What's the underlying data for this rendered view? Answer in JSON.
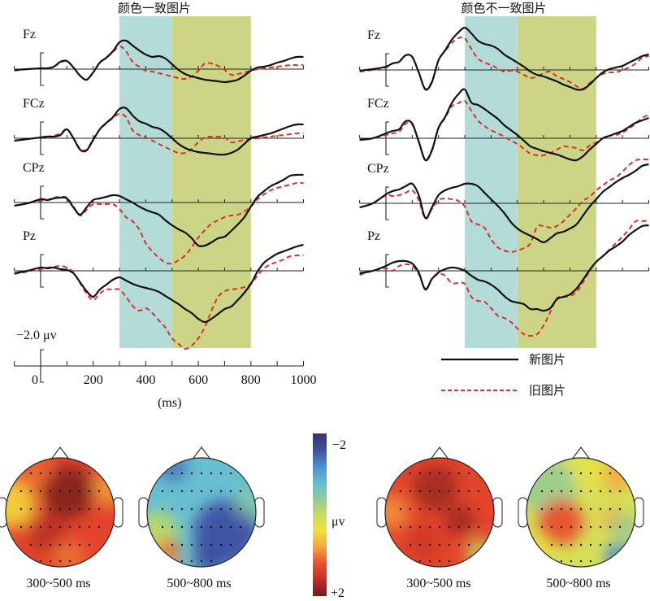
{
  "chart_data": {
    "type": "line",
    "description": "ERP waveforms (new vs old pictures) at four midline electrodes for color-consistent and color-inconsistent pictures, with scalp topographic maps",
    "x_unit_label": "(ms)",
    "x_ticks": [
      0,
      200,
      400,
      600,
      800,
      1000
    ],
    "x_range": [
      -100,
      1000
    ],
    "x_minor_step": 100,
    "amplitude_scale_label": "−2.0 μv",
    "amplitude_scale_value": -2.0,
    "polarity": "negative-up",
    "windows": [
      {
        "label": "300~500 ms",
        "start": 300,
        "end": 500,
        "color": "#b3dcd8"
      },
      {
        "label": "500~800 ms",
        "start": 500,
        "end": 800,
        "color": "#cbd585"
      }
    ],
    "legend": {
      "placement": "bottom-right",
      "items": [
        {
          "label": "新图片",
          "style": "solid",
          "color": "#111111"
        },
        {
          "label": "旧图片",
          "style": "dashed",
          "color": "#d8322b"
        }
      ]
    },
    "panels": [
      {
        "title": "颜色一致图片",
        "x": [
          -100,
          -50,
          0,
          25,
          50,
          75,
          100,
          125,
          150,
          175,
          200,
          225,
          250,
          275,
          300,
          325,
          350,
          375,
          400,
          425,
          450,
          475,
          500,
          525,
          550,
          575,
          600,
          625,
          650,
          675,
          700,
          725,
          750,
          775,
          800,
          825,
          850,
          875,
          900,
          925,
          950,
          975,
          1000
        ],
        "electrodes": [
          {
            "name": "Fz",
            "new": [
              0.1,
              0.0,
              -0.1,
              -0.1,
              -0.3,
              -0.9,
              -1.0,
              -0.2,
              0.8,
              1.3,
              0.4,
              -0.8,
              -1.4,
              -2.2,
              -3.3,
              -3.5,
              -2.9,
              -2.3,
              -1.8,
              -1.5,
              -1.6,
              -1.3,
              -0.6,
              0.1,
              0.6,
              0.9,
              1.1,
              1.3,
              1.4,
              1.5,
              1.6,
              1.5,
              1.3,
              0.8,
              0.2,
              -0.2,
              -0.3,
              -0.5,
              -0.8,
              -1.0,
              -1.3,
              -1.5,
              -1.5
            ],
            "old": [
              0.2,
              0.0,
              -0.1,
              -0.1,
              -0.3,
              -0.8,
              -1.0,
              -0.2,
              0.8,
              1.3,
              0.4,
              -0.8,
              -1.4,
              -2.1,
              -2.8,
              -2.2,
              -0.9,
              -0.3,
              0.2,
              0.3,
              0.5,
              0.7,
              0.9,
              1.1,
              1.2,
              0.9,
              0.2,
              -0.7,
              -0.7,
              -0.4,
              0.1,
              0.7,
              0.6,
              0.4,
              0.2,
              0.0,
              -0.1,
              -0.2,
              -0.3,
              -0.4,
              -0.5,
              -0.5,
              -0.5
            ]
          },
          {
            "name": "FCz",
            "new": [
              0.3,
              0.1,
              -0.1,
              -0.2,
              -0.2,
              -0.4,
              -1.1,
              0.0,
              1.4,
              1.5,
              0.2,
              -1.1,
              -1.9,
              -2.6,
              -3.6,
              -3.7,
              -2.8,
              -2.1,
              -1.8,
              -1.4,
              -1.2,
              -0.7,
              0.0,
              0.7,
              1.2,
              1.5,
              1.7,
              1.8,
              1.9,
              2.0,
              2.0,
              1.8,
              1.4,
              0.7,
              0.0,
              -0.2,
              -0.4,
              -0.6,
              -0.9,
              -1.2,
              -1.5,
              -1.7,
              -1.7
            ],
            "old": [
              0.3,
              0.1,
              -0.1,
              -0.2,
              -0.3,
              -0.6,
              -1.1,
              0.0,
              1.3,
              1.4,
              0.1,
              -1.1,
              -1.8,
              -2.5,
              -3.0,
              -2.6,
              -1.0,
              -0.4,
              -0.1,
              0.3,
              0.7,
              1.1,
              1.5,
              1.8,
              1.8,
              1.3,
              0.5,
              -0.1,
              -0.2,
              -0.2,
              -0.1,
              0.5,
              0.4,
              0.2,
              0.1,
              0.0,
              -0.1,
              -0.2,
              -0.3,
              -0.4,
              -0.5,
              -0.6,
              -0.6
            ]
          },
          {
            "name": "CPz",
            "new": [
              0.4,
              0.1,
              -0.4,
              -0.3,
              -0.5,
              -0.6,
              -0.5,
              0.6,
              1.5,
              0.6,
              -0.3,
              -0.5,
              -0.7,
              -0.9,
              -0.8,
              -0.4,
              0.0,
              0.5,
              0.9,
              1.2,
              1.5,
              2.2,
              2.8,
              3.3,
              3.7,
              4.4,
              5.3,
              5.3,
              4.9,
              4.4,
              4.2,
              3.5,
              2.7,
              1.8,
              0.5,
              -0.7,
              -1.4,
              -2.0,
              -2.4,
              -2.8,
              -3.3,
              -3.4,
              -3.4
            ],
            "old": [
              0.4,
              0.1,
              -0.2,
              -0.3,
              -0.6,
              -0.7,
              -0.6,
              0.5,
              1.6,
              0.9,
              0.2,
              0.2,
              0.2,
              0.2,
              0.8,
              1.8,
              2.3,
              3.3,
              5.0,
              6.0,
              6.8,
              7.4,
              7.5,
              7.1,
              6.5,
              5.5,
              4.3,
              3.4,
              2.6,
              2.2,
              1.8,
              1.6,
              1.5,
              1.1,
              0.5,
              -0.4,
              -1.0,
              -1.5,
              -1.8,
              -2.0,
              -2.2,
              -2.4,
              -2.4
            ]
          },
          {
            "name": "Pz",
            "new": [
              0.3,
              0.0,
              -0.4,
              -0.3,
              -0.4,
              -0.2,
              -0.1,
              0.3,
              1.4,
              2.5,
              3.2,
              2.3,
              1.7,
              1.1,
              0.8,
              1.2,
              1.6,
              1.9,
              2.1,
              2.3,
              2.6,
              3.1,
              3.6,
              4.1,
              4.7,
              5.2,
              5.9,
              6.3,
              5.9,
              5.3,
              4.7,
              4.4,
              3.6,
              2.7,
              1.6,
              0.1,
              -1.0,
              -1.6,
              -2.1,
              -2.4,
              -2.7,
              -3.0,
              -3.2
            ],
            "old": [
              0.4,
              0.1,
              -0.2,
              -0.4,
              -0.5,
              -0.6,
              -0.4,
              0.2,
              1.5,
              2.8,
              3.6,
              2.8,
              2.3,
              2.3,
              2.3,
              3.2,
              4.3,
              4.9,
              4.6,
              5.2,
              6.1,
              7.0,
              8.3,
              9.0,
              9.6,
              9.2,
              8.3,
              6.9,
              4.9,
              3.2,
              2.5,
              2.3,
              2.2,
              2.0,
              1.6,
              0.6,
              -0.3,
              -0.8,
              -1.1,
              -1.4,
              -1.8,
              -1.9,
              -1.9
            ]
          }
        ]
      },
      {
        "title": "颜色不一致图片",
        "x": [
          -100,
          -50,
          0,
          25,
          50,
          75,
          100,
          125,
          150,
          175,
          200,
          225,
          250,
          275,
          300,
          325,
          350,
          375,
          400,
          425,
          450,
          475,
          500,
          525,
          550,
          575,
          600,
          625,
          650,
          675,
          700,
          725,
          750,
          775,
          800,
          825,
          850,
          875,
          900,
          925,
          950,
          975,
          1000
        ],
        "electrodes": [
          {
            "name": "Fz",
            "new": [
              0.1,
              -0.1,
              -0.4,
              -0.8,
              -1.0,
              -1.8,
              -1.6,
              0.3,
              2.4,
              1.5,
              -1.2,
              -2.4,
              -3.7,
              -4.6,
              -5.2,
              -4.5,
              -3.6,
              -3.2,
              -3.0,
              -2.6,
              -1.9,
              -1.4,
              -0.9,
              -0.4,
              0.2,
              0.6,
              0.8,
              1.1,
              1.4,
              1.8,
              2.1,
              2.4,
              2.4,
              1.8,
              1.0,
              0.3,
              -0.1,
              -0.3,
              -0.5,
              -0.9,
              -1.3,
              -1.7,
              -1.9
            ],
            "old": [
              0.2,
              0.0,
              -0.3,
              -0.8,
              -1.0,
              -1.8,
              -1.6,
              0.3,
              2.3,
              1.4,
              -1.2,
              -2.3,
              -3.3,
              -3.9,
              -3.9,
              -2.6,
              -1.4,
              -0.9,
              -0.6,
              -0.2,
              0.2,
              0.1,
              0.2,
              0.6,
              1.0,
              0.8,
              0.4,
              0.2,
              0.8,
              1.1,
              1.5,
              2.0,
              2.3,
              1.6,
              1.0,
              0.5,
              0.3,
              0.3,
              0.0,
              -0.3,
              -0.8,
              -1.5,
              -1.7
            ]
          },
          {
            "name": "FCz",
            "new": [
              0.2,
              0.0,
              -0.6,
              -0.9,
              -1.1,
              -2.1,
              -1.8,
              0.4,
              2.7,
              1.5,
              -1.3,
              -2.6,
              -4.3,
              -5.4,
              -6.0,
              -4.4,
              -4.1,
              -3.6,
              -3.0,
              -2.4,
              -1.6,
              -1.0,
              -0.4,
              0.3,
              1.0,
              1.3,
              1.6,
              1.8,
              2.0,
              2.3,
              2.6,
              2.7,
              2.2,
              1.4,
              0.7,
              0.0,
              -0.3,
              -0.6,
              -0.9,
              -1.4,
              -1.9,
              -2.2,
              -2.5
            ],
            "old": [
              0.2,
              0.0,
              -0.4,
              -0.6,
              -0.8,
              -1.8,
              -1.7,
              0.4,
              2.6,
              1.4,
              -1.2,
              -2.5,
              -3.9,
              -4.3,
              -4.6,
              -3.4,
              -2.2,
              -1.5,
              -1.0,
              -0.6,
              -0.2,
              0.3,
              0.7,
              1.3,
              1.9,
              2.1,
              2.1,
              1.8,
              1.4,
              1.0,
              1.1,
              1.2,
              1.5,
              0.9,
              0.5,
              0.0,
              -0.3,
              -0.4,
              -0.7,
              -1.2,
              -1.8,
              -2.5,
              -2.9
            ]
          },
          {
            "name": "CPz",
            "new": [
              0.5,
              0.0,
              -1.1,
              -1.5,
              -1.7,
              -2.1,
              -2.4,
              -1.0,
              1.8,
              0.5,
              -1.0,
              -1.6,
              -1.9,
              -2.1,
              -2.4,
              -2.4,
              -2.1,
              -1.3,
              -0.5,
              0.3,
              1.2,
              2.3,
              3.1,
              3.6,
              4.0,
              4.4,
              4.8,
              4.3,
              3.7,
              3.5,
              3.1,
              2.6,
              1.5,
              0.4,
              -0.5,
              -1.4,
              -2.0,
              -2.6,
              -3.1,
              -3.5,
              -4.0,
              -4.6,
              -4.8
            ],
            "old": [
              0.5,
              0.0,
              -1.0,
              -0.9,
              -1.0,
              -1.3,
              -1.6,
              -0.4,
              1.9,
              0.7,
              -0.4,
              -0.6,
              -0.5,
              -0.3,
              0.4,
              2.2,
              2.6,
              3.0,
              4.4,
              5.4,
              5.8,
              6.0,
              5.8,
              5.5,
              4.9,
              2.9,
              2.8,
              3.0,
              2.8,
              2.2,
              1.4,
              0.6,
              -0.3,
              -0.8,
              -1.6,
              -2.2,
              -2.8,
              -3.2,
              -3.9,
              -4.7,
              -5.3,
              -5.4,
              -5.4
            ]
          },
          {
            "name": "Pz",
            "new": [
              0.3,
              0.0,
              -0.6,
              -1.0,
              -1.2,
              -1.2,
              -0.9,
              0.2,
              2.3,
              1.0,
              0.2,
              -0.2,
              -0.4,
              -0.3,
              -0.0,
              0.6,
              1.1,
              1.3,
              1.7,
              2.3,
              3.1,
              3.7,
              3.9,
              4.1,
              4.7,
              4.7,
              4.9,
              4.6,
              3.5,
              3.2,
              2.9,
              2.2,
              1.1,
              -0.1,
              -1.1,
              -1.8,
              -2.5,
              -3.0,
              -3.6,
              -4.4,
              -5.0,
              -5.5,
              -5.6
            ],
            "old": [
              0.5,
              0.0,
              -0.3,
              0.0,
              -0.6,
              -0.8,
              -0.6,
              0.4,
              2.2,
              1.0,
              0.4,
              0.6,
              1.5,
              1.5,
              1.6,
              3.2,
              3.7,
              3.8,
              4.6,
              5.5,
              5.8,
              6.3,
              7.1,
              7.8,
              8.0,
              7.8,
              6.7,
              5.1,
              3.4,
              3.2,
              3.1,
              2.6,
              1.4,
              0.0,
              -1.1,
              -1.8,
              -2.6,
              -3.4,
              -4.2,
              -5.1,
              -6.1,
              -6.1,
              -6.2
            ]
          }
        ]
      }
    ],
    "topomaps": {
      "colorbar": {
        "min_label": "−2",
        "mid_label": "μv",
        "max_label": "+2",
        "min": -2,
        "max": 2,
        "colors": [
          "#3b2d6f",
          "#3f4fa0",
          "#4a8fd0",
          "#5fbfcf",
          "#8fcb9a",
          "#c8dc5a",
          "#f0e23a",
          "#f5a340",
          "#e8502f",
          "#c62a26",
          "#6b1f1f"
        ]
      },
      "maps": [
        {
          "condition": "颜色一致图片",
          "window": "300~500 ms",
          "pattern": "positive"
        },
        {
          "condition": "颜色一致图片",
          "window": "500~800 ms",
          "pattern": "negative-right-posterior"
        },
        {
          "condition": "颜色不一致图片",
          "window": "300~500 ms",
          "pattern": "positive"
        },
        {
          "condition": "颜色不一致图片",
          "window": "500~800 ms",
          "pattern": "mixed"
        }
      ]
    }
  }
}
